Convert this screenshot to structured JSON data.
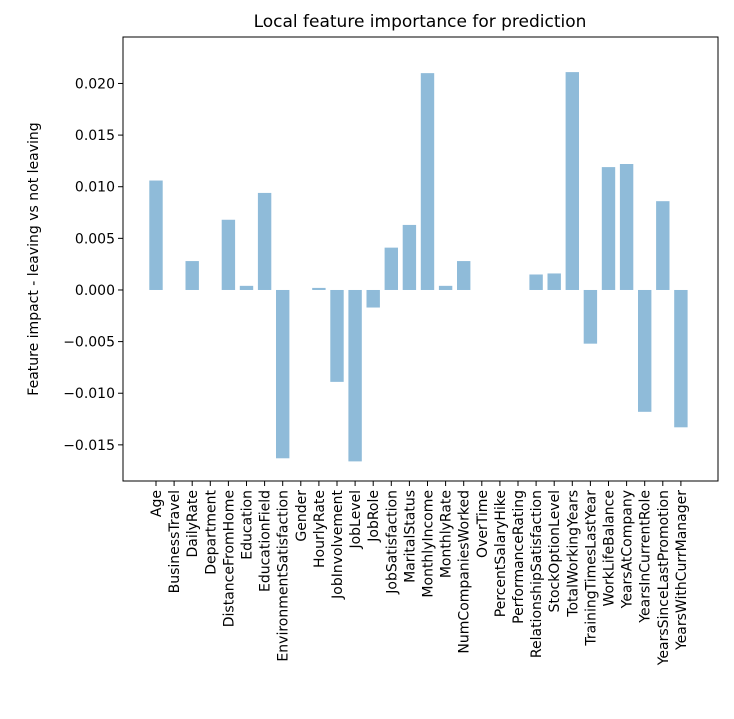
{
  "chart_data": {
    "type": "bar",
    "title": "Local feature importance for prediction",
    "xlabel": "",
    "ylabel": "Feature impact - leaving vs not leaving",
    "ylim": [
      -0.0185,
      0.0245
    ],
    "yticks": [
      -0.015,
      -0.01,
      -0.005,
      0.0,
      0.005,
      0.01,
      0.015,
      0.02
    ],
    "ytick_labels": [
      "−0.015",
      "−0.010",
      "−0.005",
      "0.000",
      "0.005",
      "0.010",
      "0.015",
      "0.020"
    ],
    "bar_color": "#8fbbd9",
    "grid": false,
    "categories": [
      "Age",
      "BusinessTravel",
      "DailyRate",
      "Department",
      "DistanceFromHome",
      "Education",
      "EducationField",
      "EnvironmentSatisfaction",
      "Gender",
      "HourlyRate",
      "JobInvolvement",
      "JobLevel",
      "JobRole",
      "JobSatisfaction",
      "MaritalStatus",
      "MonthlyIncome",
      "MonthlyRate",
      "NumCompaniesWorked",
      "OverTime",
      "PercentSalaryHike",
      "PerformanceRating",
      "RelationshipSatisfaction",
      "StockOptionLevel",
      "TotalWorkingYears",
      "TrainingTimesLastYear",
      "WorkLifeBalance",
      "YearsAtCompany",
      "YearsInCurrentRole",
      "YearsSinceLastPromotion",
      "YearsWithCurrManager"
    ],
    "values": [
      0.0106,
      0.0,
      0.0028,
      0.0,
      0.0068,
      0.0004,
      0.0094,
      -0.0163,
      0.0,
      0.0002,
      -0.0089,
      -0.0166,
      -0.0017,
      0.0041,
      0.0063,
      0.021,
      0.0004,
      0.0028,
      0.0,
      0.0,
      0.0,
      0.0015,
      0.0016,
      0.0211,
      -0.0052,
      0.0119,
      0.0122,
      -0.0118,
      0.0086,
      -0.0133
    ]
  }
}
